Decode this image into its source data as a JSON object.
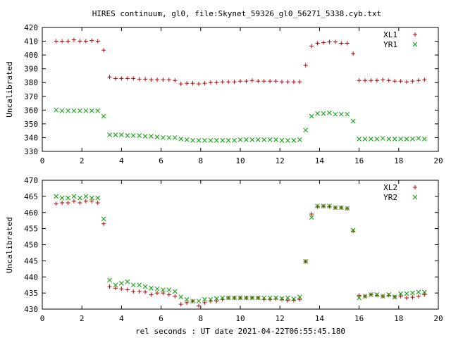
{
  "chart_title": "HIRES continuum, gl0, file:Skynet_59326_gl0_56271_5338.cyb.txt",
  "colors": {
    "red": "#c00000",
    "green": "#00a000",
    "axis": "#000000"
  },
  "chart_data": [
    {
      "type": "scatter",
      "xlabel": "",
      "ylabel": "Uncalibrated",
      "xlim": [
        0,
        20
      ],
      "ylim": [
        330,
        420
      ],
      "x_ticks": [
        0,
        2,
        4,
        6,
        8,
        10,
        12,
        14,
        16,
        18,
        20
      ],
      "y_ticks": [
        330,
        340,
        350,
        360,
        370,
        380,
        390,
        400,
        410,
        420
      ],
      "legend_position": "top-right",
      "series": [
        {
          "name": "XL1",
          "marker": "plus",
          "color": "#c00000",
          "x": [
            0.7,
            1.0,
            1.3,
            1.6,
            1.9,
            2.2,
            2.5,
            2.8,
            3.1,
            3.4,
            3.7,
            4.0,
            4.3,
            4.6,
            4.9,
            5.2,
            5.5,
            5.8,
            6.1,
            6.4,
            6.7,
            7.0,
            7.3,
            7.6,
            7.9,
            8.2,
            8.5,
            8.8,
            9.1,
            9.4,
            9.7,
            10.0,
            10.3,
            10.6,
            10.9,
            11.2,
            11.5,
            11.8,
            12.1,
            12.4,
            12.7,
            13.0,
            13.3,
            13.6,
            13.9,
            14.2,
            14.5,
            14.8,
            15.1,
            15.4,
            15.7,
            16.0,
            16.3,
            16.6,
            16.9,
            17.2,
            17.5,
            17.8,
            18.1,
            18.4,
            18.7,
            19.0,
            19.3
          ],
          "y": [
            410,
            410,
            410,
            411,
            410,
            410,
            410.5,
            410,
            403.5,
            384,
            383,
            383,
            383,
            383,
            382.5,
            382.5,
            382,
            382,
            382,
            382,
            381.5,
            379,
            379.5,
            379.5,
            379,
            379.5,
            380,
            380,
            380.5,
            380.5,
            380.5,
            381,
            381,
            381.5,
            381,
            381,
            381,
            381,
            380.5,
            380.5,
            380.5,
            380.5,
            392.5,
            406.5,
            408.5,
            409,
            409.5,
            409.5,
            408.5,
            408.5,
            401,
            381.5,
            381.5,
            381.5,
            381.5,
            382,
            381.5,
            381,
            381,
            380.5,
            381,
            381.5,
            382
          ]
        },
        {
          "name": "YR1",
          "marker": "cross",
          "color": "#00a000",
          "x": [
            0.7,
            1.0,
            1.3,
            1.6,
            1.9,
            2.2,
            2.5,
            2.8,
            3.1,
            3.4,
            3.7,
            4.0,
            4.3,
            4.6,
            4.9,
            5.2,
            5.5,
            5.8,
            6.1,
            6.4,
            6.7,
            7.0,
            7.3,
            7.6,
            7.9,
            8.2,
            8.5,
            8.8,
            9.1,
            9.4,
            9.7,
            10.0,
            10.3,
            10.6,
            10.9,
            11.2,
            11.5,
            11.8,
            12.1,
            12.4,
            12.7,
            13.0,
            13.3,
            13.6,
            13.9,
            14.2,
            14.5,
            14.8,
            15.1,
            15.4,
            15.7,
            16.0,
            16.3,
            16.6,
            16.9,
            17.2,
            17.5,
            17.8,
            18.1,
            18.4,
            18.7,
            19.0,
            19.3
          ],
          "y": [
            360,
            359.5,
            359.5,
            359.5,
            359.5,
            359.5,
            359.5,
            359.5,
            355.5,
            342,
            342,
            342,
            341.5,
            341.5,
            341.5,
            341,
            341,
            340.5,
            340,
            340,
            340,
            339,
            338.5,
            338,
            338,
            338,
            338,
            338,
            338,
            338,
            338,
            338.5,
            338.5,
            338.5,
            338.5,
            338.5,
            338.5,
            338.5,
            338,
            338,
            338,
            338.5,
            345.5,
            355.5,
            357.5,
            357.5,
            358,
            357,
            357,
            357,
            352,
            339,
            339,
            339,
            339,
            339.5,
            339,
            339,
            339,
            339,
            339,
            339.5,
            339
          ]
        }
      ]
    },
    {
      "type": "scatter",
      "xlabel": "rel seconds : UT date 2021-04-22T06:55:45.180",
      "ylabel": "Uncalibrated",
      "xlim": [
        0,
        20
      ],
      "ylim": [
        430,
        470
      ],
      "x_ticks": [
        0,
        2,
        4,
        6,
        8,
        10,
        12,
        14,
        16,
        18,
        20
      ],
      "y_ticks": [
        430,
        435,
        440,
        445,
        450,
        455,
        460,
        465,
        470
      ],
      "legend_position": "top-right",
      "series": [
        {
          "name": "XL2",
          "marker": "plus",
          "color": "#c00000",
          "x": [
            0.7,
            1.0,
            1.3,
            1.6,
            1.9,
            2.2,
            2.5,
            2.8,
            3.1,
            3.4,
            3.7,
            4.0,
            4.3,
            4.6,
            4.9,
            5.2,
            5.5,
            5.8,
            6.1,
            6.4,
            6.7,
            7.0,
            7.3,
            7.6,
            7.9,
            8.2,
            8.5,
            8.8,
            9.1,
            9.4,
            9.7,
            10.0,
            10.3,
            10.6,
            10.9,
            11.2,
            11.5,
            11.8,
            12.1,
            12.4,
            12.7,
            13.0,
            13.3,
            13.6,
            13.9,
            14.2,
            14.5,
            14.8,
            15.1,
            15.4,
            15.7,
            16.0,
            16.3,
            16.6,
            16.9,
            17.2,
            17.5,
            17.8,
            18.1,
            18.4,
            18.7,
            19.0,
            19.3
          ],
          "y": [
            462.7,
            463,
            463,
            463.5,
            463,
            463.5,
            463.5,
            463,
            456.5,
            437,
            436.5,
            436.3,
            436,
            435.5,
            435.5,
            435.3,
            434.5,
            435,
            435,
            434.5,
            434,
            431.5,
            432,
            432.5,
            431,
            432,
            432.5,
            432.5,
            433,
            433.5,
            433.5,
            433.5,
            433.5,
            433.5,
            433.5,
            433,
            433,
            433.2,
            433,
            432.7,
            432.8,
            433,
            444.8,
            459.5,
            461.8,
            461.9,
            461.8,
            461.5,
            461.5,
            461.2,
            454.2,
            434.3,
            434,
            434.5,
            434.3,
            434,
            434.3,
            433.8,
            434,
            433.5,
            433.7,
            434,
            434.5
          ]
        },
        {
          "name": "YR2",
          "marker": "cross",
          "color": "#00a000",
          "x": [
            0.7,
            1.0,
            1.3,
            1.6,
            1.9,
            2.2,
            2.5,
            2.8,
            3.1,
            3.4,
            3.7,
            4.0,
            4.3,
            4.6,
            4.9,
            5.2,
            5.5,
            5.8,
            6.1,
            6.4,
            6.7,
            7.0,
            7.3,
            7.6,
            7.9,
            8.2,
            8.5,
            8.8,
            9.1,
            9.4,
            9.7,
            10.0,
            10.3,
            10.6,
            10.9,
            11.2,
            11.5,
            11.8,
            12.1,
            12.4,
            12.7,
            13.0,
            13.3,
            13.6,
            13.9,
            14.2,
            14.5,
            14.8,
            15.1,
            15.4,
            15.7,
            16.0,
            16.3,
            16.6,
            16.9,
            17.2,
            17.5,
            17.8,
            18.1,
            18.4,
            18.7,
            19.0,
            19.3
          ],
          "y": [
            465,
            464.5,
            464.5,
            465,
            464.5,
            465,
            464.5,
            464.5,
            458,
            439,
            437.5,
            438,
            438.5,
            437.5,
            437.5,
            437,
            436.5,
            436.3,
            436,
            436,
            435.5,
            433.8,
            433,
            432.5,
            432.5,
            433,
            433,
            433.3,
            433.5,
            433.5,
            433.5,
            433.5,
            433.5,
            433.5,
            433.5,
            433.5,
            433.5,
            433.5,
            433.3,
            433.5,
            433.2,
            433.8,
            444.8,
            458.5,
            462,
            462,
            462,
            461.5,
            461.5,
            461.3,
            454.5,
            433.5,
            434,
            434.5,
            434.5,
            434,
            434.5,
            433.8,
            434.8,
            434.8,
            435,
            435.3,
            435.3
          ]
        }
      ]
    }
  ]
}
